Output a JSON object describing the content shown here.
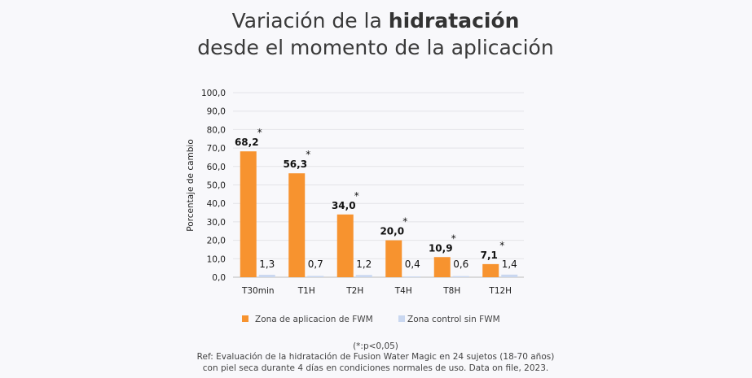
{
  "chart_data": {
    "type": "bar",
    "title": {
      "prefix": "Variación de la ",
      "bold": "hidratación",
      "line2": "desde el momento de la aplicación"
    },
    "ylabel": "Porcentaje de cambio",
    "xlabel": "",
    "ylim": [
      0,
      100
    ],
    "yticks": [
      "0,0",
      "10,0",
      "20,0",
      "30,0",
      "40,0",
      "50,0",
      "60,0",
      "70,0",
      "80,0",
      "90,0",
      "100,0"
    ],
    "grid": true,
    "categories": [
      "T30min",
      "T1H",
      "T2H",
      "T4H",
      "T8H",
      "T12H"
    ],
    "series": [
      {
        "name": "Zona de aplicacion de FWM",
        "color": "#f7932f",
        "values": [
          68.2,
          56.3,
          34.0,
          20.0,
          10.9,
          7.1
        ],
        "labels": [
          "68,2",
          "56,3",
          "34,0",
          "20,0",
          "10,9",
          "7,1"
        ],
        "significance": [
          "*",
          "*",
          "*",
          "*",
          "*",
          "*"
        ]
      },
      {
        "name": "Zona control sin FWM",
        "color": "#c9d7f0",
        "values": [
          1.3,
          0.7,
          1.2,
          0.4,
          0.6,
          1.4
        ],
        "labels": [
          "1,3",
          "0,7",
          "1,2",
          "0,4",
          "0,6",
          "1,4"
        ]
      }
    ],
    "legend_position": "bottom"
  },
  "footnotes": {
    "significance": "(*:p<0,05)",
    "ref1": "Ref: Evaluación de la hidratación de Fusion Water Magic en 24 sujetos (18-70 años)",
    "ref2": "con piel seca durante 4 días en condiciones normales de uso. Data on file, 2023."
  }
}
